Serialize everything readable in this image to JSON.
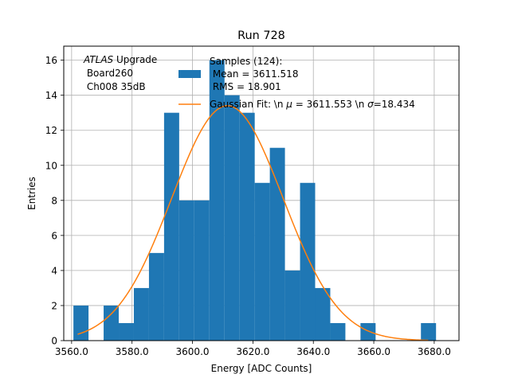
{
  "chart_data": {
    "type": "bar",
    "title": "Run 728",
    "xlabel": "Energy [ADC Counts]",
    "ylabel": "Entries",
    "xlim": [
      3557.4,
      3688.2
    ],
    "ylim": [
      0,
      16.8
    ],
    "grid": true,
    "xticks": [
      3560,
      3580,
      3600,
      3620,
      3640,
      3660,
      3680
    ],
    "xtick_labels": [
      "3560.0",
      "3580.0",
      "3600.0",
      "3620.0",
      "3640.0",
      "3660.0",
      "3680.0"
    ],
    "yticks": [
      0,
      2,
      4,
      6,
      8,
      10,
      12,
      14,
      16
    ],
    "ytick_labels": [
      "0",
      "2",
      "4",
      "6",
      "8",
      "10",
      "12",
      "14",
      "16"
    ],
    "bin_width": 5.0,
    "bin_edges": [
      3560.6,
      3565.6,
      3570.6,
      3575.6,
      3580.6,
      3585.6,
      3590.6,
      3595.6,
      3600.6,
      3605.6,
      3610.6,
      3615.6,
      3620.6,
      3625.6,
      3630.6,
      3635.6,
      3640.6,
      3645.6,
      3650.6,
      3655.6,
      3660.6,
      3665.6,
      3670.6,
      3675.6,
      3680.6
    ],
    "series": [
      {
        "name": "Samples (124):\n Mean = 3611.518\n RMS = 18.901",
        "type": "hist",
        "color": "#1f77b4",
        "values": [
          2,
          0,
          2,
          1,
          3,
          5,
          13,
          8,
          8,
          16,
          14,
          13,
          9,
          11,
          4,
          9,
          3,
          1,
          0,
          1,
          0,
          0,
          0,
          1
        ]
      },
      {
        "name": "Gaussian Fit: \\n $\\mu$ = 3611.553 \\n $\\sigma$=18.434",
        "type": "line",
        "color": "#ff7f0e",
        "amplitude": 13.4,
        "mu": 3611.553,
        "sigma": 18.434,
        "x_range": [
          3562.0,
          3678.0
        ]
      }
    ],
    "legend": {
      "placement": "top-right",
      "hist_lines": [
        "Samples (124):",
        " Mean = 3611.518",
        " RMS = 18.901"
      ],
      "fit_label_prefix": "Gaussian Fit: \\n ",
      "fit_mu_symbol": "μ",
      "fit_mu_value": " = 3611.553 \\n ",
      "fit_sigma_symbol": "σ",
      "fit_sigma_value": "=18.434"
    },
    "annotation": {
      "atlas": "ATLAS",
      "upgrade": " Upgrade",
      "line2": " Board260",
      "line3": " Ch008 35dB"
    }
  }
}
